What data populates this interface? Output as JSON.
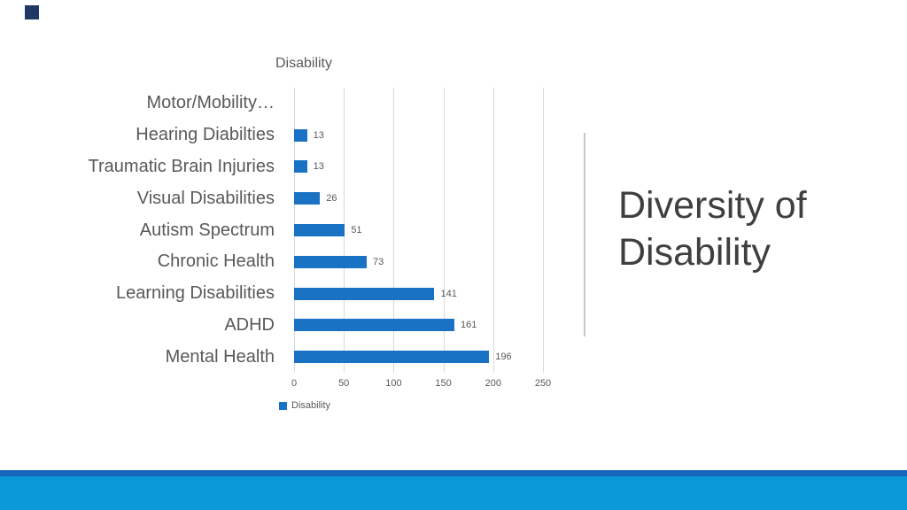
{
  "slide": {
    "title_lines": [
      "Diversity of",
      "Disability"
    ]
  },
  "chart_data": {
    "type": "bar",
    "orientation": "horizontal",
    "title": "Disability",
    "categories": [
      "Motor/Mobility…",
      "Hearing Diabilties",
      "Traumatic Brain Injuries",
      "Visual Disabilities",
      "Autism Spectrum",
      "Chronic Health",
      "Learning Disabilities",
      "ADHD",
      "Mental Health"
    ],
    "values": [
      0,
      13,
      13,
      26,
      51,
      73,
      141,
      161,
      196
    ],
    "value_labels": [
      "",
      "13",
      "13",
      "26",
      "51",
      "73",
      "141",
      "161",
      "196"
    ],
    "xlabel": "",
    "ylabel": "",
    "xlim": [
      0,
      250
    ],
    "xticks": [
      0,
      50,
      100,
      150,
      200,
      250
    ],
    "grid": true,
    "legend": {
      "position": "bottom",
      "label": "Disability"
    }
  },
  "colors": {
    "bar": "#1A72C4",
    "grid": "#D9D9D9",
    "text_gray": "#595959",
    "cat_gray": "#595959",
    "title_gray": "#3F3F3F",
    "divider": "#C9C9C9",
    "bottom_strip": "#1766BC",
    "bottom_band": "#0899D6",
    "corner_square": "#1F3864"
  }
}
